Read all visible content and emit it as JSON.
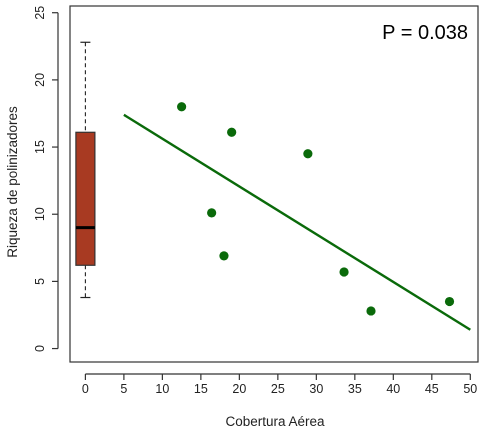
{
  "chart_data": {
    "type": "scatter",
    "xlabel": "Cobertura Aérea",
    "ylabel": "Riqueza de polinizadores",
    "annotation": "P = 0.038",
    "xlim": [
      -2,
      51
    ],
    "ylim": [
      -1,
      25.5
    ],
    "xticks": [
      0,
      5,
      10,
      15,
      20,
      25,
      30,
      35,
      40,
      45,
      50
    ],
    "yticks": [
      0,
      5,
      10,
      15,
      20,
      25
    ],
    "points": [
      {
        "x": 12.5,
        "y": 18.0
      },
      {
        "x": 19.0,
        "y": 16.1
      },
      {
        "x": 28.9,
        "y": 14.5
      },
      {
        "x": 16.4,
        "y": 10.1
      },
      {
        "x": 18.0,
        "y": 6.9
      },
      {
        "x": 33.6,
        "y": 5.7
      },
      {
        "x": 37.1,
        "y": 2.8
      },
      {
        "x": 47.3,
        "y": 3.5
      }
    ],
    "regression_line": {
      "x": [
        5,
        50
      ],
      "y": [
        17.4,
        1.4
      ]
    },
    "boxplot": {
      "x": 0,
      "whisker_low": 3.8,
      "q1": 6.2,
      "median": 9.0,
      "q3": 16.1,
      "whisker_high": 22.8
    },
    "colors": {
      "points": "#0a6a0a",
      "line": "#0a6a0a",
      "box_fill": "#a83a22",
      "box_border": "#333333",
      "axis": "#333333"
    },
    "grid": false,
    "legend": "none"
  }
}
